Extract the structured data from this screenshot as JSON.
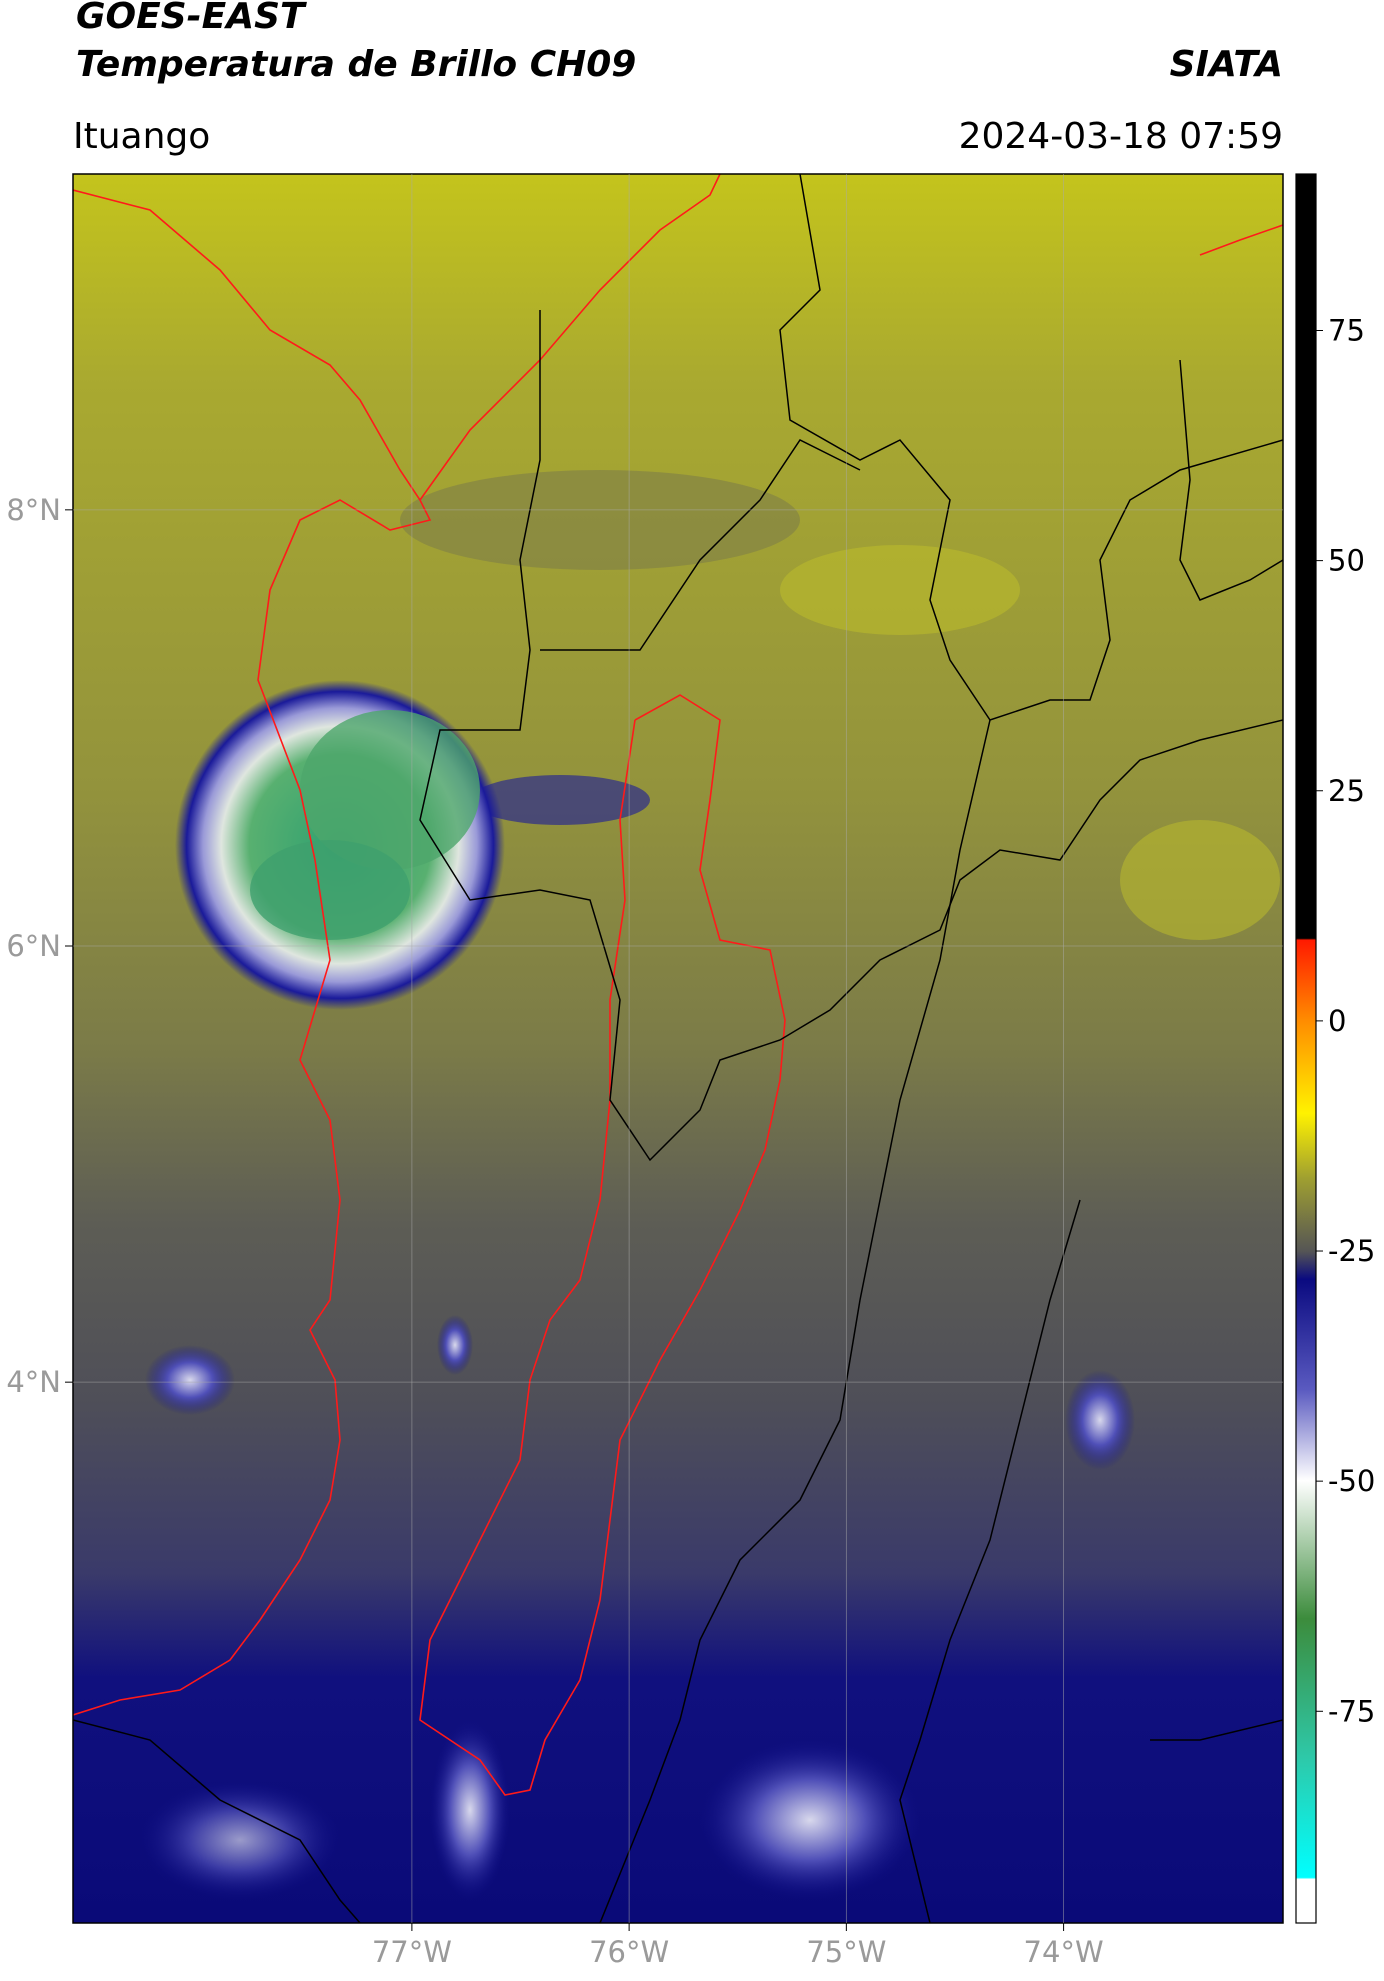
{
  "header": {
    "title": "GOES-EAST",
    "subtitle": "Temperatura de Brillo CH09",
    "source": "SIATA",
    "location": "Ituango",
    "timestamp": "2024-03-18 07:59"
  },
  "map": {
    "xlim": [
      -78.56,
      -72.99
    ],
    "ylim": [
      1.52,
      9.54
    ],
    "xticks": [
      {
        "value": -77,
        "label": "77°W"
      },
      {
        "value": -76,
        "label": "76°W"
      },
      {
        "value": -75,
        "label": "75°W"
      },
      {
        "value": -74,
        "label": "74°W"
      }
    ],
    "yticks": [
      {
        "value": 4,
        "label": "4°N"
      },
      {
        "value": 6,
        "label": "6°N"
      },
      {
        "value": 8,
        "label": "8°N"
      }
    ],
    "grid": true
  },
  "colorbar": {
    "lim": [
      -98,
      92
    ],
    "ticks": [
      -75,
      -50,
      -25,
      0,
      25,
      50,
      75
    ]
  }
}
